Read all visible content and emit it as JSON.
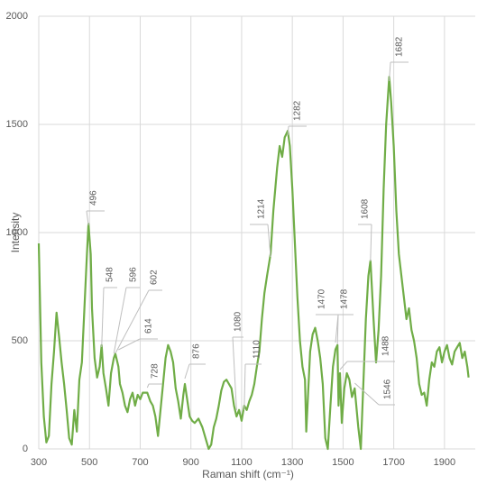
{
  "chart_data": {
    "type": "line",
    "xlabel": "Raman shift (cm⁻¹)",
    "ylabel": "Intensity",
    "color": "#70ad47",
    "grid": true,
    "xlim": [
      300,
      2000
    ],
    "xticks": [
      300,
      500,
      700,
      900,
      1100,
      1300,
      1500,
      1700,
      1900
    ],
    "ylim": [
      0,
      2000
    ],
    "yticks": [
      0,
      500,
      1000,
      1500,
      2000
    ],
    "x": [
      300,
      310,
      320,
      330,
      340,
      350,
      360,
      370,
      380,
      390,
      400,
      410,
      420,
      430,
      440,
      450,
      460,
      470,
      480,
      490,
      496,
      505,
      510,
      520,
      530,
      540,
      548,
      555,
      565,
      575,
      585,
      596,
      602,
      610,
      614,
      620,
      630,
      640,
      650,
      660,
      670,
      680,
      690,
      700,
      710,
      728,
      740,
      750,
      760,
      770,
      780,
      790,
      800,
      810,
      820,
      830,
      840,
      850,
      860,
      870,
      876,
      885,
      895,
      905,
      915,
      930,
      945,
      960,
      970,
      980,
      990,
      1000,
      1010,
      1020,
      1030,
      1040,
      1050,
      1060,
      1070,
      1080,
      1090,
      1100,
      1110,
      1120,
      1130,
      1140,
      1150,
      1160,
      1170,
      1180,
      1190,
      1200,
      1214,
      1225,
      1240,
      1250,
      1260,
      1270,
      1282,
      1290,
      1300,
      1310,
      1320,
      1330,
      1340,
      1350,
      1355,
      1360,
      1370,
      1380,
      1390,
      1400,
      1410,
      1420,
      1430,
      1440,
      1450,
      1460,
      1470,
      1478,
      1482,
      1488,
      1495,
      1505,
      1515,
      1525,
      1535,
      1546,
      1560,
      1570,
      1580,
      1590,
      1600,
      1608,
      1620,
      1630,
      1640,
      1650,
      1660,
      1670,
      1682,
      1690,
      1700,
      1710,
      1720,
      1730,
      1740,
      1750,
      1760,
      1770,
      1780,
      1790,
      1800,
      1810,
      1820,
      1830,
      1840,
      1850,
      1860,
      1870,
      1880,
      1890,
      1900,
      1910,
      1920,
      1930,
      1940,
      1950,
      1960,
      1970,
      1980,
      1990,
      1995
    ],
    "values": [
      950,
      400,
      150,
      30,
      60,
      300,
      450,
      630,
      520,
      400,
      300,
      180,
      50,
      20,
      180,
      80,
      320,
      400,
      650,
      900,
      1040,
      900,
      650,
      420,
      330,
      380,
      480,
      350,
      280,
      200,
      350,
      420,
      440,
      400,
      380,
      300,
      260,
      200,
      170,
      230,
      260,
      200,
      250,
      230,
      260,
      260,
      220,
      200,
      150,
      60,
      180,
      300,
      420,
      480,
      450,
      400,
      280,
      220,
      140,
      250,
      300,
      230,
      150,
      130,
      120,
      140,
      100,
      40,
      0,
      20,
      100,
      140,
      200,
      270,
      310,
      320,
      300,
      280,
      200,
      150,
      180,
      130,
      200,
      180,
      220,
      250,
      300,
      380,
      450,
      600,
      720,
      800,
      900,
      1100,
      1300,
      1400,
      1350,
      1440,
      1470,
      1400,
      1200,
      950,
      700,
      500,
      380,
      320,
      80,
      200,
      450,
      530,
      560,
      500,
      420,
      300,
      50,
      0,
      200,
      380,
      460,
      480,
      200,
      350,
      120,
      280,
      350,
      320,
      240,
      280,
      100,
      0,
      300,
      600,
      800,
      870,
      600,
      400,
      550,
      800,
      1200,
      1500,
      1720,
      1600,
      1400,
      1100,
      900,
      800,
      700,
      600,
      650,
      550,
      500,
      420,
      300,
      250,
      260,
      200,
      320,
      400,
      380,
      450,
      470,
      400,
      450,
      480,
      420,
      390,
      450,
      470,
      490,
      420,
      450,
      380,
      330
    ],
    "peaks": [
      496,
      548,
      596,
      602,
      614,
      728,
      876,
      1080,
      1110,
      1214,
      1282,
      1470,
      1478,
      1488,
      1546,
      1608,
      1682
    ]
  }
}
